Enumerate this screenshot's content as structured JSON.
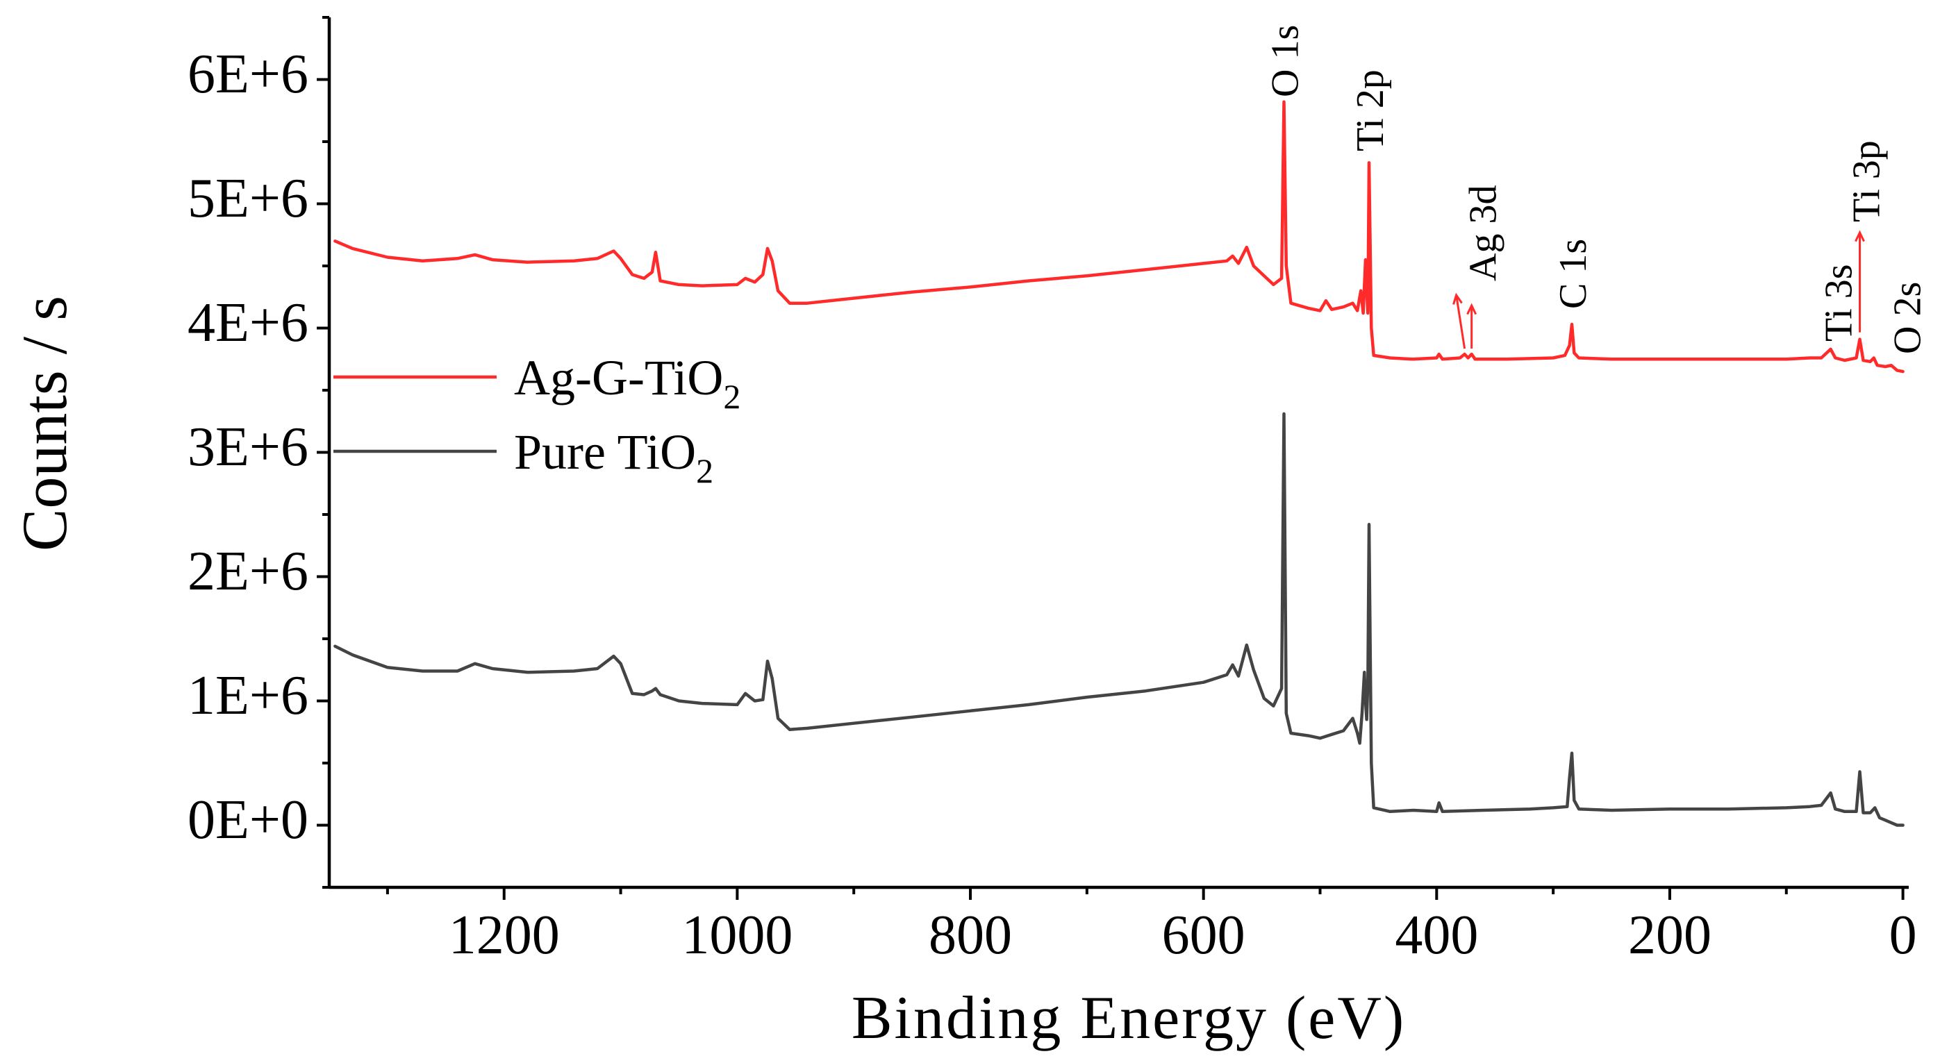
{
  "chart_data": {
    "type": "line",
    "title": "",
    "xlabel": "Binding Energy (eV)",
    "ylabel": "Counts / s",
    "xlim": [
      1350,
      -5
    ],
    "ylim": [
      -500000,
      6500000
    ],
    "x_ticks": [
      1200,
      1000,
      800,
      600,
      400,
      200,
      0
    ],
    "x_tick_labels": [
      "1200",
      "1000",
      "800",
      "600",
      "400",
      "200",
      "0"
    ],
    "y_ticks": [
      0,
      1000000,
      2000000,
      3000000,
      4000000,
      5000000,
      6000000
    ],
    "y_tick_labels": [
      "0E+0",
      "1E+6",
      "2E+6",
      "3E+6",
      "4E+6",
      "5E+6",
      "6E+6"
    ],
    "legend": {
      "placement": "middle-left",
      "entries": [
        {
          "series": "Ag-G-TiO2",
          "base": "Ag-G-TiO",
          "sub": "2"
        },
        {
          "series": "Pure TiO2",
          "base": "Pure TiO",
          "sub": "2"
        }
      ]
    },
    "series": [
      {
        "name": "Ag-G-TiO2",
        "color": "#ff2a2a",
        "points": [
          [
            1345,
            4700000
          ],
          [
            1330,
            4640000
          ],
          [
            1300,
            4570000
          ],
          [
            1270,
            4540000
          ],
          [
            1240,
            4560000
          ],
          [
            1225,
            4590000
          ],
          [
            1210,
            4550000
          ],
          [
            1180,
            4530000
          ],
          [
            1140,
            4540000
          ],
          [
            1120,
            4560000
          ],
          [
            1106,
            4620000
          ],
          [
            1100,
            4560000
          ],
          [
            1090,
            4430000
          ],
          [
            1080,
            4400000
          ],
          [
            1073,
            4450000
          ],
          [
            1070,
            4610000
          ],
          [
            1066,
            4380000
          ],
          [
            1050,
            4350000
          ],
          [
            1030,
            4340000
          ],
          [
            1000,
            4350000
          ],
          [
            993,
            4400000
          ],
          [
            985,
            4370000
          ],
          [
            978,
            4430000
          ],
          [
            974,
            4640000
          ],
          [
            970,
            4540000
          ],
          [
            965,
            4300000
          ],
          [
            955,
            4200000
          ],
          [
            940,
            4200000
          ],
          [
            900,
            4240000
          ],
          [
            850,
            4290000
          ],
          [
            800,
            4330000
          ],
          [
            750,
            4380000
          ],
          [
            700,
            4420000
          ],
          [
            650,
            4470000
          ],
          [
            600,
            4520000
          ],
          [
            580,
            4540000
          ],
          [
            575,
            4580000
          ],
          [
            570,
            4520000
          ],
          [
            563,
            4650000
          ],
          [
            557,
            4500000
          ],
          [
            548,
            4420000
          ],
          [
            540,
            4350000
          ],
          [
            533,
            4400000
          ],
          [
            531,
            5820000
          ],
          [
            529,
            4500000
          ],
          [
            525,
            4200000
          ],
          [
            510,
            4160000
          ],
          [
            500,
            4140000
          ],
          [
            495,
            4220000
          ],
          [
            490,
            4150000
          ],
          [
            480,
            4170000
          ],
          [
            472,
            4200000
          ],
          [
            468,
            4140000
          ],
          [
            465,
            4300000
          ],
          [
            463,
            4120000
          ],
          [
            461,
            4550000
          ],
          [
            460,
            4300000
          ],
          [
            459,
            4120000
          ],
          [
            458,
            5330000
          ],
          [
            456,
            4000000
          ],
          [
            454,
            3780000
          ],
          [
            440,
            3760000
          ],
          [
            420,
            3750000
          ],
          [
            400,
            3760000
          ],
          [
            398,
            3790000
          ],
          [
            395,
            3750000
          ],
          [
            380,
            3760000
          ],
          [
            376,
            3790000
          ],
          [
            373,
            3760000
          ],
          [
            370,
            3790000
          ],
          [
            367,
            3750000
          ],
          [
            340,
            3750000
          ],
          [
            300,
            3760000
          ],
          [
            290,
            3780000
          ],
          [
            286,
            3860000
          ],
          [
            284,
            4030000
          ],
          [
            282,
            3800000
          ],
          [
            278,
            3760000
          ],
          [
            250,
            3750000
          ],
          [
            200,
            3750000
          ],
          [
            150,
            3750000
          ],
          [
            100,
            3750000
          ],
          [
            80,
            3760000
          ],
          [
            70,
            3760000
          ],
          [
            62,
            3830000
          ],
          [
            58,
            3760000
          ],
          [
            50,
            3740000
          ],
          [
            40,
            3760000
          ],
          [
            37,
            3910000
          ],
          [
            34,
            3740000
          ],
          [
            28,
            3730000
          ],
          [
            25,
            3760000
          ],
          [
            22,
            3700000
          ],
          [
            15,
            3690000
          ],
          [
            10,
            3700000
          ],
          [
            5,
            3660000
          ],
          [
            0,
            3650000
          ]
        ]
      },
      {
        "name": "Pure TiO2",
        "color": "#444444",
        "points": [
          [
            1345,
            1440000
          ],
          [
            1330,
            1370000
          ],
          [
            1300,
            1270000
          ],
          [
            1270,
            1240000
          ],
          [
            1240,
            1240000
          ],
          [
            1225,
            1300000
          ],
          [
            1210,
            1260000
          ],
          [
            1180,
            1230000
          ],
          [
            1140,
            1240000
          ],
          [
            1120,
            1260000
          ],
          [
            1106,
            1360000
          ],
          [
            1100,
            1300000
          ],
          [
            1090,
            1060000
          ],
          [
            1080,
            1050000
          ],
          [
            1073,
            1080000
          ],
          [
            1070,
            1100000
          ],
          [
            1066,
            1050000
          ],
          [
            1050,
            1000000
          ],
          [
            1030,
            980000
          ],
          [
            1000,
            970000
          ],
          [
            993,
            1060000
          ],
          [
            985,
            1000000
          ],
          [
            978,
            1010000
          ],
          [
            974,
            1320000
          ],
          [
            970,
            1180000
          ],
          [
            965,
            860000
          ],
          [
            955,
            770000
          ],
          [
            940,
            780000
          ],
          [
            900,
            820000
          ],
          [
            850,
            870000
          ],
          [
            800,
            920000
          ],
          [
            750,
            970000
          ],
          [
            700,
            1030000
          ],
          [
            650,
            1080000
          ],
          [
            600,
            1150000
          ],
          [
            580,
            1210000
          ],
          [
            575,
            1290000
          ],
          [
            570,
            1200000
          ],
          [
            563,
            1450000
          ],
          [
            557,
            1250000
          ],
          [
            548,
            1020000
          ],
          [
            540,
            960000
          ],
          [
            533,
            1100000
          ],
          [
            531,
            3310000
          ],
          [
            529,
            900000
          ],
          [
            525,
            740000
          ],
          [
            510,
            720000
          ],
          [
            500,
            700000
          ],
          [
            490,
            730000
          ],
          [
            480,
            760000
          ],
          [
            472,
            860000
          ],
          [
            468,
            740000
          ],
          [
            466,
            660000
          ],
          [
            464,
            900000
          ],
          [
            462,
            1230000
          ],
          [
            461,
            1000000
          ],
          [
            460,
            850000
          ],
          [
            459,
            1150000
          ],
          [
            458,
            2420000
          ],
          [
            456,
            500000
          ],
          [
            454,
            140000
          ],
          [
            440,
            110000
          ],
          [
            420,
            120000
          ],
          [
            400,
            110000
          ],
          [
            398,
            180000
          ],
          [
            395,
            110000
          ],
          [
            360,
            120000
          ],
          [
            320,
            130000
          ],
          [
            300,
            140000
          ],
          [
            288,
            150000
          ],
          [
            286,
            380000
          ],
          [
            284,
            580000
          ],
          [
            282,
            200000
          ],
          [
            278,
            130000
          ],
          [
            250,
            120000
          ],
          [
            200,
            130000
          ],
          [
            150,
            130000
          ],
          [
            100,
            140000
          ],
          [
            80,
            150000
          ],
          [
            70,
            160000
          ],
          [
            62,
            260000
          ],
          [
            58,
            130000
          ],
          [
            50,
            110000
          ],
          [
            40,
            110000
          ],
          [
            37,
            430000
          ],
          [
            34,
            100000
          ],
          [
            28,
            100000
          ],
          [
            24,
            140000
          ],
          [
            20,
            60000
          ],
          [
            15,
            40000
          ],
          [
            10,
            20000
          ],
          [
            5,
            0
          ],
          [
            0,
            0
          ]
        ]
      }
    ],
    "annotations": [
      {
        "text": "O 1s",
        "x": 531
      },
      {
        "text": "Ti 2p",
        "x": 458
      },
      {
        "text": "Ag 3d",
        "x": 372
      },
      {
        "text": "C 1s",
        "x": 284
      },
      {
        "text": "Ti 3s",
        "x": 62
      },
      {
        "text": "Ti 3p",
        "x": 37
      },
      {
        "text": "O 2s",
        "x": 22
      }
    ]
  }
}
